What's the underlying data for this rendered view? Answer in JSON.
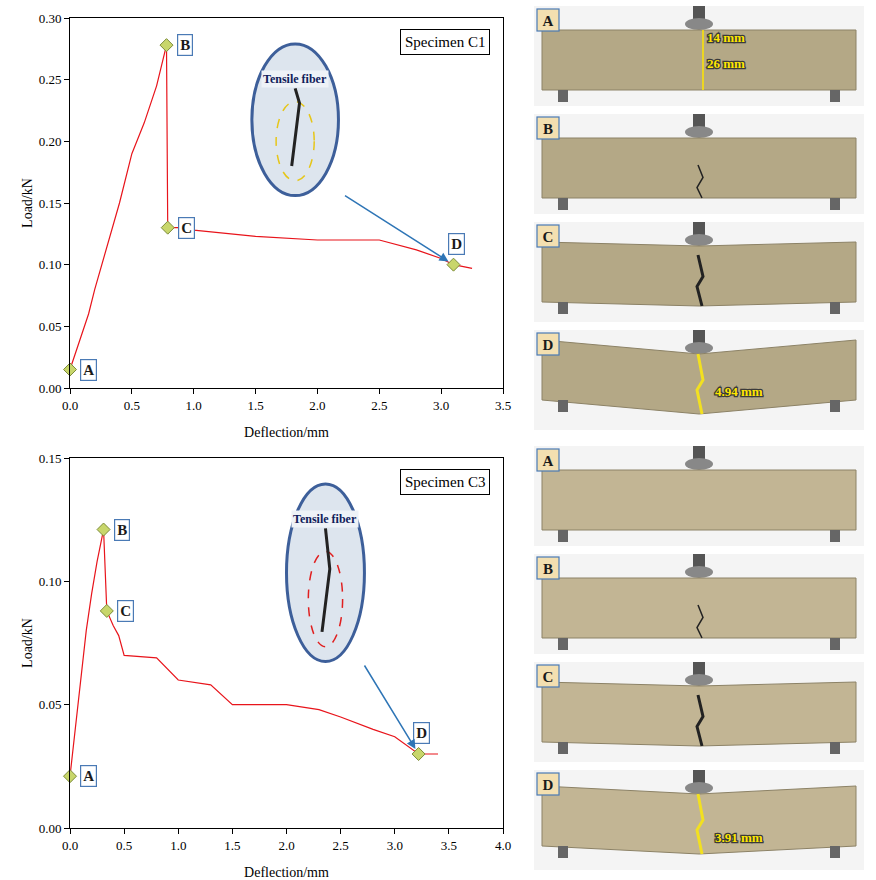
{
  "chart_data": [
    {
      "type": "line",
      "title": "Specimen C1",
      "x_label": "Deflection/mm",
      "y_label": "Load/kN",
      "color": "#e8141b",
      "x": [
        0,
        0.05,
        0.1,
        0.15,
        0.2,
        0.3,
        0.4,
        0.5,
        0.6,
        0.7,
        0.78,
        0.79,
        0.9,
        1.0,
        1.3,
        1.5,
        2.0,
        2.5,
        2.8,
        3.0,
        3.1,
        3.25
      ],
      "values": [
        0.015,
        0.03,
        0.045,
        0.06,
        0.08,
        0.115,
        0.15,
        0.19,
        0.215,
        0.245,
        0.278,
        0.13,
        0.13,
        0.128,
        0.125,
        0.123,
        0.12,
        0.12,
        0.112,
        0.105,
        0.1,
        0.097
      ],
      "xlim": [
        0,
        3.5
      ],
      "xticks": [
        {
          "value": 0,
          "label": "0.0"
        },
        {
          "value": 0.5,
          "label": "0.5"
        },
        {
          "value": 1,
          "label": "1.0"
        },
        {
          "value": 1.5,
          "label": "1.5"
        },
        {
          "value": 2,
          "label": "2.0"
        },
        {
          "value": 2.5,
          "label": "2.5"
        },
        {
          "value": 3,
          "label": "3.0"
        },
        {
          "value": 3.5,
          "label": "3.5"
        }
      ],
      "ylim": [
        0,
        0.3
      ],
      "yticks": [
        {
          "value": 0,
          "label": "0.00"
        },
        {
          "value": 0.05,
          "label": "0.05"
        },
        {
          "value": 0.1,
          "label": "0.10"
        },
        {
          "value": 0.15,
          "label": "0.15"
        },
        {
          "value": 0.2,
          "label": "0.20"
        },
        {
          "value": 0.25,
          "label": "0.25"
        },
        {
          "value": 0.3,
          "label": "0.30"
        }
      ],
      "points": {
        "labels": [
          "A",
          "B",
          "C",
          "D"
        ],
        "x": [
          0,
          0.78,
          0.79,
          3.1
        ],
        "y": [
          0.015,
          0.278,
          0.13,
          0.1
        ],
        "color": "#c8d66b",
        "marker": "diamond"
      },
      "inset": "Tensile fiber"
    },
    {
      "type": "line",
      "title": "Specimen C3",
      "x_label": "Deflection/mm",
      "y_label": "Load/kN",
      "color": "#e8141b",
      "x": [
        0,
        0.05,
        0.1,
        0.15,
        0.2,
        0.25,
        0.31,
        0.34,
        0.4,
        0.45,
        0.5,
        0.8,
        1.0,
        1.3,
        1.5,
        2.0,
        2.3,
        2.5,
        2.8,
        3.0,
        3.22,
        3.4
      ],
      "values": [
        0.021,
        0.04,
        0.06,
        0.08,
        0.095,
        0.108,
        0.121,
        0.088,
        0.082,
        0.078,
        0.07,
        0.069,
        0.06,
        0.058,
        0.05,
        0.05,
        0.048,
        0.045,
        0.04,
        0.037,
        0.03,
        0.03
      ],
      "xlim": [
        0,
        4
      ],
      "xticks": [
        {
          "value": 0,
          "label": "0.0"
        },
        {
          "value": 0.5,
          "label": "0.5"
        },
        {
          "value": 1,
          "label": "1.0"
        },
        {
          "value": 1.5,
          "label": "1.5"
        },
        {
          "value": 2,
          "label": "2.0"
        },
        {
          "value": 2.5,
          "label": "2.5"
        },
        {
          "value": 3,
          "label": "3.0"
        },
        {
          "value": 3.5,
          "label": "3.5"
        },
        {
          "value": 4,
          "label": "4.0"
        }
      ],
      "ylim": [
        0,
        0.15
      ],
      "yticks": [
        {
          "value": 0,
          "label": "0.00"
        },
        {
          "value": 0.05,
          "label": "0.05"
        },
        {
          "value": 0.1,
          "label": "0.10"
        },
        {
          "value": 0.15,
          "label": "0.15"
        }
      ],
      "points": {
        "labels": [
          "A",
          "B",
          "C",
          "D"
        ],
        "x": [
          0,
          0.31,
          0.34,
          3.22
        ],
        "y": [
          0.021,
          0.121,
          0.088,
          0.03
        ],
        "color": "#c8d66b",
        "marker": "diamond"
      },
      "inset": "Tensile fiber"
    }
  ],
  "photo_panels": [
    [
      {
        "label": "A",
        "texts": [
          "14 mm",
          "26 mm"
        ]
      },
      {
        "label": "B"
      },
      {
        "label": "C"
      },
      {
        "label": "D",
        "texts": [
          "4.94 mm"
        ]
      }
    ],
    [
      {
        "label": "A"
      },
      {
        "label": "B"
      },
      {
        "label": "C"
      },
      {
        "label": "D",
        "texts": [
          "3.91 mm"
        ]
      }
    ]
  ]
}
